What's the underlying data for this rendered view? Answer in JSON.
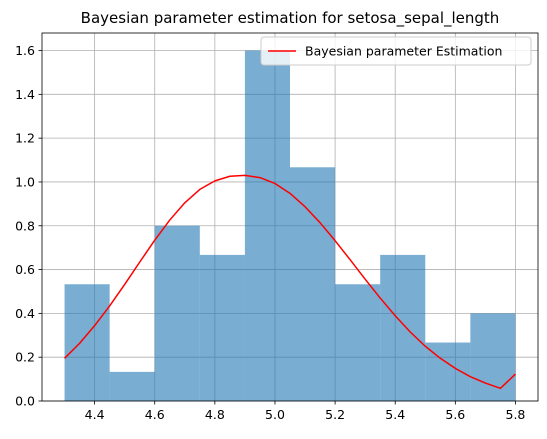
{
  "chart_data": {
    "type": "bar",
    "title": "Bayesian parameter estimation for setosa_sepal_length",
    "xlabel": "",
    "ylabel": "",
    "xlim": [
      4.225,
      5.875
    ],
    "ylim": [
      0,
      1.68
    ],
    "grid": true,
    "legend_position": "top-right",
    "x_ticks": [
      4.4,
      4.6,
      4.8,
      5.0,
      5.2,
      5.4,
      5.6,
      5.8
    ],
    "y_ticks": [
      0.0,
      0.2,
      0.4,
      0.6,
      0.8,
      1.0,
      1.2,
      1.4,
      1.6
    ],
    "histogram": {
      "bin_edges": [
        4.3,
        4.45,
        4.6,
        4.75,
        4.9,
        5.05,
        5.2,
        5.35,
        5.5,
        5.65,
        5.8
      ],
      "densities": [
        0.533,
        0.133,
        0.8,
        0.667,
        1.6,
        1.067,
        0.533,
        0.667,
        0.267,
        0.4
      ],
      "color": "#1f77b4",
      "alpha": 0.6
    },
    "series": [
      {
        "name": "Bayesian parameter Estimation",
        "type": "line",
        "color": "#ff0000",
        "x": [
          4.3,
          4.35,
          4.4,
          4.45,
          4.5,
          4.55,
          4.6,
          4.65,
          4.7,
          4.75,
          4.8,
          4.85,
          4.9,
          4.95,
          5.0,
          5.05,
          5.1,
          5.15,
          5.2,
          5.25,
          5.3,
          5.35,
          5.4,
          5.45,
          5.5,
          5.55,
          5.6,
          5.65,
          5.7,
          5.75,
          5.8
        ],
        "y": [
          0.195,
          0.263,
          0.344,
          0.434,
          0.532,
          0.634,
          0.734,
          0.826,
          0.905,
          0.966,
          1.005,
          1.026,
          1.03,
          1.02,
          0.993,
          0.948,
          0.887,
          0.814,
          0.732,
          0.645,
          0.556,
          0.47,
          0.389,
          0.315,
          0.25,
          0.195,
          0.149,
          0.111,
          0.082,
          0.058,
          0.123
        ]
      }
    ]
  }
}
